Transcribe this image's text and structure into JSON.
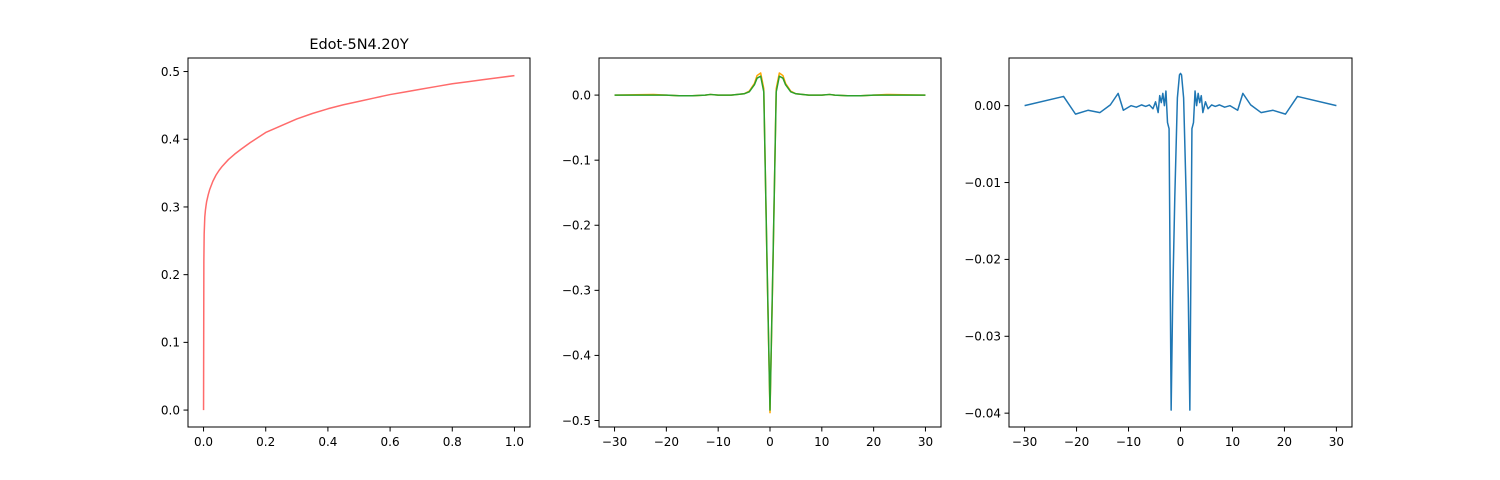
{
  "chart_data": [
    {
      "type": "line",
      "title": "Edot-5N4.20Y",
      "xlim": [
        -0.05,
        1.05
      ],
      "ylim": [
        -0.025,
        0.52
      ],
      "xticks": [
        0.0,
        0.2,
        0.4,
        0.6,
        0.8,
        1.0
      ],
      "xtick_labels": [
        "0.0",
        "0.2",
        "0.4",
        "0.6",
        "0.8",
        "1.0"
      ],
      "yticks": [
        0.0,
        0.1,
        0.2,
        0.3,
        0.4,
        0.5
      ],
      "ytick_labels": [
        "0.0",
        "0.1",
        "0.2",
        "0.3",
        "0.4",
        "0.5"
      ],
      "grid": false,
      "series": [
        {
          "color": "#ff6b6b",
          "x": [
            0.0,
            0.001,
            0.002,
            0.004,
            0.006,
            0.008,
            0.01,
            0.015,
            0.02,
            0.03,
            0.04,
            0.05,
            0.06,
            0.08,
            0.1,
            0.12,
            0.15,
            0.2,
            0.25,
            0.3,
            0.35,
            0.4,
            0.45,
            0.5,
            0.55,
            0.6,
            0.65,
            0.7,
            0.75,
            0.8,
            0.85,
            0.9,
            0.95,
            1.0
          ],
          "y": [
            0.0,
            0.22,
            0.26,
            0.285,
            0.295,
            0.302,
            0.308,
            0.318,
            0.326,
            0.338,
            0.347,
            0.354,
            0.36,
            0.37,
            0.378,
            0.385,
            0.395,
            0.41,
            0.42,
            0.43,
            0.438,
            0.445,
            0.451,
            0.456,
            0.461,
            0.466,
            0.47,
            0.474,
            0.478,
            0.482,
            0.485,
            0.488,
            0.491,
            0.494
          ]
        }
      ]
    },
    {
      "type": "line",
      "title": "",
      "xlim": [
        -33,
        33
      ],
      "ylim": [
        -0.51,
        0.057
      ],
      "xticks": [
        -30,
        -20,
        -10,
        0,
        10,
        20,
        30
      ],
      "xtick_labels": [
        "−30",
        "−20",
        "−10",
        "0",
        "10",
        "20",
        "30"
      ],
      "yticks": [
        0.0,
        -0.1,
        -0.2,
        -0.3,
        -0.4,
        -0.5
      ],
      "ytick_labels": [
        "0.0",
        "−0.1",
        "−0.2",
        "−0.3",
        "−0.4",
        "−0.5"
      ],
      "grid": false,
      "series": [
        {
          "color": "#ffa500",
          "x": [
            -30,
            -22.5,
            -20,
            -17.5,
            -15,
            -12.5,
            -11.5,
            -10,
            -7.5,
            -5,
            -4,
            -3,
            -2.5,
            -1.8,
            -1.2,
            -0.6,
            0,
            0.6,
            1.2,
            1.8,
            2.5,
            3,
            4,
            5,
            7.5,
            10,
            11.5,
            12.5,
            15,
            17.5,
            20,
            22.5,
            30
          ],
          "y": [
            0.0,
            0.001,
            0.0,
            -0.001,
            -0.001,
            0.0,
            0.001,
            0.0,
            0.0,
            0.002,
            0.006,
            0.018,
            0.03,
            0.034,
            0.01,
            -0.25,
            -0.488,
            -0.25,
            0.01,
            0.034,
            0.03,
            0.018,
            0.006,
            0.002,
            0.0,
            0.0,
            0.001,
            0.0,
            -0.001,
            -0.001,
            0.0,
            0.001,
            0.0
          ]
        },
        {
          "color": "#2ca02c",
          "x": [
            -30,
            -22.5,
            -20,
            -17.5,
            -15,
            -12.5,
            -11.5,
            -10,
            -7.5,
            -5,
            -4,
            -3,
            -2.5,
            -1.8,
            -1.2,
            -0.6,
            0,
            0.6,
            1.2,
            1.8,
            2.5,
            3,
            4,
            5,
            7.5,
            10,
            11.5,
            12.5,
            15,
            17.5,
            20,
            22.5,
            30
          ],
          "y": [
            0.0,
            0.0,
            0.0,
            -0.001,
            -0.001,
            0.0,
            0.001,
            0.0,
            0.0,
            0.002,
            0.005,
            0.016,
            0.026,
            0.029,
            0.005,
            -0.245,
            -0.484,
            -0.245,
            0.005,
            0.029,
            0.026,
            0.016,
            0.005,
            0.002,
            0.0,
            0.0,
            0.001,
            0.0,
            -0.001,
            -0.001,
            0.0,
            0.0,
            0.0
          ]
        }
      ]
    },
    {
      "type": "line",
      "title": "",
      "xlim": [
        -33,
        33
      ],
      "ylim": [
        -0.0418,
        0.0062
      ],
      "xticks": [
        -30,
        -20,
        -10,
        0,
        10,
        20,
        30
      ],
      "xtick_labels": [
        "−30",
        "−20",
        "−10",
        "0",
        "10",
        "20",
        "30"
      ],
      "yticks": [
        0.0,
        -0.01,
        -0.02,
        -0.03,
        -0.04
      ],
      "ytick_labels": [
        "0.00",
        "−0.01",
        "−0.02",
        "−0.03",
        "−0.04"
      ],
      "grid": false,
      "series": [
        {
          "color": "#1f77b4",
          "x": [
            -30,
            -22.5,
            -20.2,
            -17.8,
            -15.5,
            -13.5,
            -12,
            -11,
            -9.5,
            -8.5,
            -7.5,
            -6.7,
            -6,
            -5.3,
            -4.8,
            -4.3,
            -4,
            -3.7,
            -3.4,
            -3.1,
            -2.8,
            -2.5,
            -2.2,
            -1.8,
            -1.5,
            -1.1,
            -0.6,
            -0.2,
            0,
            0.2,
            0.6,
            1.1,
            1.5,
            1.8,
            2.2,
            2.5,
            2.8,
            3.1,
            3.4,
            3.7,
            4,
            4.3,
            4.8,
            5.3,
            6,
            6.7,
            7.5,
            8.5,
            9.5,
            11,
            12,
            13.5,
            15.5,
            17.8,
            20.2,
            22.5,
            30
          ],
          "y": [
            0.0,
            0.0012,
            -0.0011,
            -0.0006,
            -0.0009,
            0.0001,
            0.0016,
            -0.0006,
            0.0,
            -0.0002,
            0.0001,
            -0.0001,
            0.0001,
            -0.0004,
            0.0005,
            -0.0009,
            0.0013,
            0.0004,
            0.0016,
            0.0,
            0.0019,
            -0.0022,
            -0.003,
            -0.0396,
            -0.025,
            -0.012,
            0.001,
            0.004,
            0.0042,
            0.004,
            0.001,
            -0.012,
            -0.025,
            -0.0396,
            -0.003,
            -0.0022,
            0.0019,
            0.0,
            0.0016,
            0.0004,
            0.0013,
            -0.0009,
            0.0005,
            -0.0004,
            0.0001,
            -0.0001,
            0.0001,
            -0.0002,
            0.0,
            -0.0006,
            0.0016,
            0.0001,
            -0.0009,
            -0.0006,
            -0.0011,
            0.0012,
            0.0
          ]
        }
      ]
    }
  ]
}
